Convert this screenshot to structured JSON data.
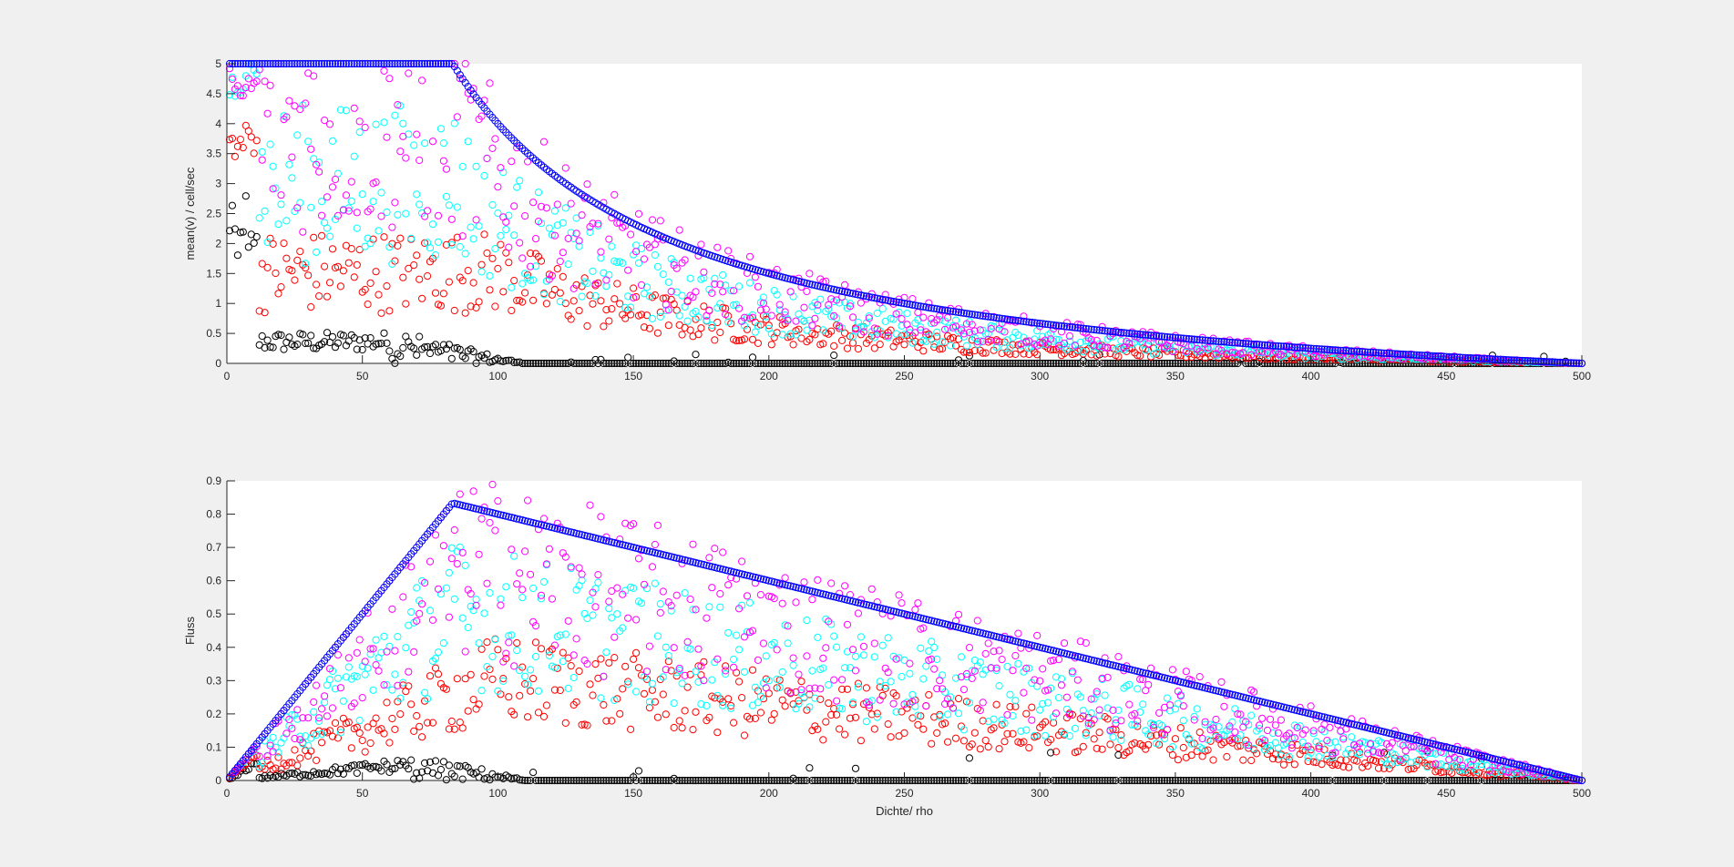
{
  "figure": {
    "background": "#f0f0f0"
  },
  "colors": {
    "black": "#000000",
    "red": "#ff0000",
    "cyan": "#00ffff",
    "magenta": "#ff00ff",
    "blue": "#0000ff",
    "axis": "#262626",
    "plot_bg": "#ffffff"
  },
  "chart_data": [
    {
      "type": "scatter",
      "title": "",
      "xlabel": "",
      "ylabel": "mean(v) / cell/sec",
      "xlim": [
        0,
        500
      ],
      "ylim": [
        0,
        5
      ],
      "xticks": [
        "0",
        "50",
        "100",
        "150",
        "200",
        "250",
        "300",
        "350",
        "400",
        "450",
        "500"
      ],
      "yticks": [
        "0",
        "0.5",
        "1",
        "1.5",
        "2",
        "2.5",
        "3",
        "3.5",
        "4",
        "4.5",
        "5"
      ],
      "grid": false,
      "marker": "open-circle",
      "series": [
        {
          "color": "blue",
          "shape": "v_deterministic",
          "vmax": 5,
          "points": "x = 1..500 (every density), y = min(5, (500 - x)/x); values x=50:5, 100:4, 150:2.33, 200:1.5, 250:1, 300:0.67, 400:0.25, 500:0"
        },
        {
          "color": "magenta",
          "shape": "v_noisy",
          "vmax": 5,
          "points": "x = 1..500, y scattered just below blue curve; plateau 5 until ~45, band 3.5–4.9 near x 50–80, ~2.5 at 100, ~1.4 at 150, ~1.0 at 200, ~0.6 at 300, ~0.2 at 400, 0 at 500"
        },
        {
          "color": "cyan",
          "shape": "v_noisy",
          "vmax": 5,
          "points": "x = 1..500, band ~4.7 at 10 down to 1.5–3.5 at 60, ~1.2 at 150, ~0.7 at 200, ~0.4 at 300, ~0.15 at 400, 0 at 500"
        },
        {
          "color": "red",
          "shape": "v_noisy",
          "vmax": 4,
          "points": "x = 1..500, ~4 at 5–12 then 1–3 at 30–60, ~0.6 at 100, ~0.3 at 150, ~0.15 at 250, ~0.05 at 400, 0 at 500"
        },
        {
          "color": "black",
          "shape": "v_noisy",
          "vmax": 3,
          "points": "x = 1..500, ~3 at 5–12, 0–2 at 20–60, ~0.3 at 80, 0 beyond ~150"
        }
      ]
    },
    {
      "type": "scatter",
      "title": "",
      "xlabel": "Dichte/ rho",
      "ylabel": "Fluss",
      "xlim": [
        0,
        500
      ],
      "ylim": [
        0,
        0.9
      ],
      "xticks": [
        "0",
        "50",
        "100",
        "150",
        "200",
        "250",
        "300",
        "350",
        "400",
        "450",
        "500"
      ],
      "yticks": [
        "0",
        "0.1",
        "0.2",
        "0.3",
        "0.4",
        "0.5",
        "0.6",
        "0.7",
        "0.8",
        "0.9"
      ],
      "grid": false,
      "marker": "open-circle",
      "series": [
        {
          "color": "blue",
          "shape": "q_deterministic",
          "vmax": 5,
          "points": "x = 1..500 (every density), y = x*v/500 (stepped rise to peak 0.83 at x≈85, then linear fall to 0 at 500); values x=50:0.5, 100:0.8, 200:0.6, 300:0.4, 400:0.2, 500:0"
        },
        {
          "color": "magenta",
          "shape": "q_noisy",
          "vmax": 5,
          "points": "x = 1..500, peak ~0.6 at x≈80–110, ~0.5 at 150, ~0.42 at 200, ~0.3 at 300, ~0.15 at 400, 0 at 500"
        },
        {
          "color": "cyan",
          "shape": "q_noisy",
          "vmax": 5,
          "points": "x = 1..500, peak ~0.42 at x≈60–100, ~0.3 at 150, ~0.22 at 250, ~0.15 at 350, ~0.08 at 450, 0 at 500"
        },
        {
          "color": "red",
          "shape": "q_noisy",
          "vmax": 4,
          "points": "x = 1..500, peak ~0.22 at x≈40–70, ~0.12 at 150, ~0.07 at 250, ~0.05 at 350, ~0.03 at 450, 0 at 500"
        },
        {
          "color": "black",
          "shape": "q_noisy",
          "vmax": 3,
          "points": "x = 1..500, ~0.08 at x≈20–60, ~0.02 at 100, 0 beyond ~150"
        }
      ]
    }
  ]
}
